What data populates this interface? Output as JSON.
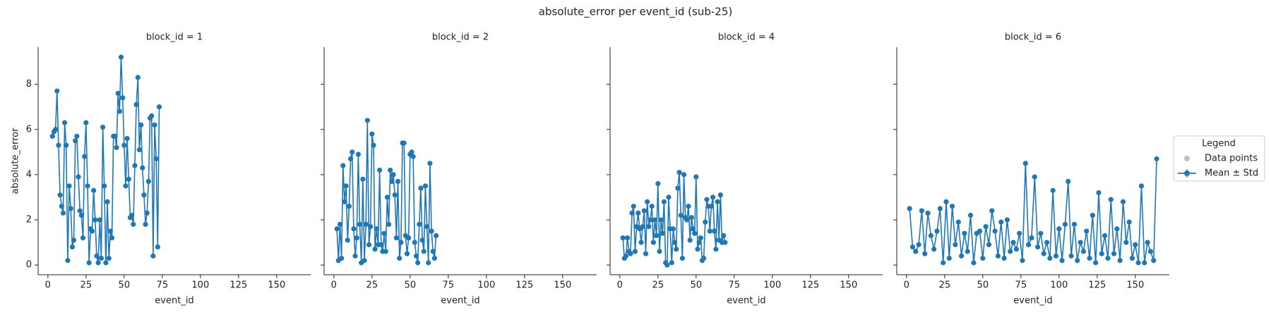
{
  "title": "absolute_error per event_id (sub-25)",
  "legend": {
    "title": "Legend",
    "entries": [
      {
        "name": "Data points",
        "color": "#bfbfbf"
      },
      {
        "name": "Mean ± Std",
        "color": "#1f77b4"
      }
    ]
  },
  "chart_data": [
    {
      "type": "line",
      "title": "block_id = 1",
      "xlabel": "event_id",
      "ylabel": "absolute_error",
      "color": "#1f77b4",
      "x": [
        3,
        4,
        5,
        6,
        7,
        8,
        9,
        10,
        11,
        12,
        13,
        14,
        15,
        16,
        17,
        18,
        19,
        20,
        21,
        22,
        23,
        24,
        25,
        26,
        27,
        28,
        29,
        30,
        31,
        32,
        33,
        34,
        35,
        36,
        37,
        38,
        39,
        40,
        41,
        42,
        43,
        44,
        45,
        46,
        47,
        48,
        49,
        50,
        51,
        52,
        53,
        54,
        55,
        56,
        57,
        58,
        59,
        60,
        61,
        62,
        63,
        64,
        65,
        66,
        67,
        68,
        69,
        70,
        71,
        72,
        73
      ],
      "values": [
        5.7,
        5.9,
        6.0,
        7.7,
        5.3,
        3.1,
        2.6,
        2.3,
        6.3,
        5.3,
        0.2,
        3.5,
        2.5,
        0.8,
        1.1,
        5.5,
        5.7,
        3.9,
        2.4,
        2.2,
        1.2,
        4.8,
        6.3,
        3.5,
        0.1,
        1.6,
        1.5,
        3.3,
        2.0,
        0.4,
        0.1,
        2.0,
        0.3,
        6.1,
        3.5,
        0.1,
        2.8,
        0.3,
        1.5,
        1.2,
        5.7,
        5.7,
        5.2,
        7.6,
        6.8,
        9.2,
        7.4,
        5.3,
        3.5,
        5.6,
        3.8,
        2.1,
        2.2,
        1.8,
        4.4,
        7.1,
        8.3,
        5.1,
        6.2,
        4.3,
        3.1,
        1.8,
        2.3,
        3.7,
        6.5,
        6.6,
        0.4,
        6.2,
        4.7,
        0.8,
        7.0
      ],
      "xlim": [
        -6.4,
        172.3
      ],
      "ylim": [
        -0.43,
        9.64
      ],
      "xticks": [
        0,
        25,
        50,
        75,
        100,
        125,
        150
      ],
      "yticks": [
        0,
        2,
        4,
        6,
        8
      ]
    },
    {
      "type": "line",
      "title": "block_id = 2",
      "xlabel": "event_id",
      "color": "#1f77b4",
      "x": [
        2,
        3,
        4,
        5,
        6,
        7,
        8,
        9,
        10,
        11,
        12,
        13,
        14,
        15,
        16,
        17,
        18,
        19,
        20,
        21,
        22,
        23,
        24,
        25,
        26,
        27,
        28,
        29,
        30,
        31,
        32,
        33,
        34,
        35,
        36,
        37,
        38,
        39,
        40,
        41,
        42,
        43,
        44,
        45,
        46,
        47,
        48,
        49,
        50,
        51,
        52,
        53,
        54,
        55,
        56,
        57,
        58,
        59,
        60,
        61,
        62,
        63,
        64,
        65,
        66,
        67
      ],
      "values": [
        1.6,
        0.2,
        1.8,
        0.3,
        4.4,
        2.8,
        3.5,
        1.1,
        2.6,
        4.7,
        5.0,
        1.6,
        0.4,
        1.2,
        4.9,
        1.8,
        0.1,
        3.8,
        0.2,
        1.8,
        6.4,
        0.9,
        1.7,
        5.8,
        5.3,
        0.7,
        1.6,
        0.9,
        4.2,
        0.9,
        0.6,
        1.4,
        0.6,
        3.0,
        1.8,
        4.2,
        3.7,
        4.0,
        3.1,
        1.2,
        3.7,
        0.3,
        1.0,
        5.4,
        5.4,
        1.3,
        0.5,
        1.2,
        4.9,
        5.0,
        4.8,
        1.0,
        0.4,
        0.1,
        1.8,
        3.4,
        1.1,
        0.6,
        3.5,
        1.7,
        0.1,
        4.5,
        1.5,
        0.6,
        0.3,
        1.3
      ],
      "xlim": [
        -6.4,
        172.3
      ],
      "ylim": [
        -0.43,
        9.64
      ],
      "xticks": [
        0,
        25,
        50,
        75,
        100,
        125,
        150
      ],
      "yticks": [
        0,
        2,
        4,
        6,
        8
      ]
    },
    {
      "type": "line",
      "title": "block_id = 4",
      "xlabel": "event_id",
      "color": "#1f77b4",
      "x": [
        2,
        3,
        4,
        5,
        6,
        7,
        8,
        9,
        10,
        11,
        12,
        13,
        14,
        15,
        16,
        17,
        18,
        19,
        20,
        21,
        22,
        23,
        24,
        25,
        26,
        27,
        28,
        29,
        30,
        31,
        32,
        33,
        34,
        35,
        36,
        37,
        38,
        39,
        40,
        41,
        42,
        43,
        44,
        45,
        46,
        47,
        48,
        49,
        50,
        51,
        52,
        53,
        54,
        55,
        56,
        57,
        58,
        59,
        60,
        61,
        62,
        63,
        64,
        65,
        66,
        67,
        68,
        69
      ],
      "values": [
        1.2,
        0.3,
        0.4,
        1.2,
        0.6,
        0.5,
        2.3,
        2.6,
        0.6,
        1.7,
        2.3,
        1.6,
        1.0,
        1.7,
        2.4,
        0.5,
        2.8,
        1.7,
        2.0,
        2.6,
        1.0,
        2.0,
        1.3,
        3.6,
        0.6,
        2.0,
        1.4,
        2.8,
        0.1,
        0.0,
        3.0,
        1.6,
        0.1,
        1.6,
        1.0,
        0.7,
        3.4,
        4.1,
        2.2,
        0.3,
        4.0,
        2.1,
        2.0,
        2.6,
        1.1,
        2.1,
        1.6,
        1.4,
        3.9,
        0.7,
        1.0,
        1.2,
        0.2,
        0.3,
        1.9,
        2.9,
        2.6,
        1.5,
        2.6,
        3.0,
        1.5,
        0.7,
        2.8,
        1.1,
        3.1,
        1.0,
        1.3,
        1.0
      ],
      "xlim": [
        -6.4,
        172.3
      ],
      "ylim": [
        -0.43,
        9.64
      ],
      "xticks": [
        0,
        25,
        50,
        75,
        100,
        125,
        150
      ],
      "yticks": [
        0,
        2,
        4,
        6,
        8
      ]
    },
    {
      "type": "line",
      "title": "block_id = 6",
      "xlabel": "event_id",
      "color": "#1f77b4",
      "x": [
        2,
        4,
        6,
        8,
        10,
        12,
        14,
        16,
        18,
        20,
        22,
        24,
        26,
        28,
        30,
        32,
        34,
        36,
        38,
        40,
        42,
        44,
        46,
        48,
        50,
        52,
        54,
        56,
        58,
        60,
        62,
        64,
        66,
        68,
        70,
        72,
        74,
        76,
        78,
        80,
        82,
        84,
        86,
        88,
        90,
        92,
        94,
        96,
        98,
        100,
        102,
        104,
        106,
        108,
        110,
        112,
        114,
        116,
        118,
        120,
        122,
        124,
        126,
        128,
        130,
        132,
        134,
        136,
        138,
        140,
        142,
        144,
        146,
        148,
        150,
        152,
        154,
        156,
        158,
        160,
        162,
        164
      ],
      "values": [
        2.5,
        0.8,
        0.6,
        0.9,
        2.4,
        0.5,
        2.3,
        1.3,
        0.7,
        1.5,
        2.5,
        0.1,
        2.8,
        0.3,
        2.6,
        0.9,
        1.9,
        0.4,
        1.4,
        0.6,
        2.2,
        0.1,
        1.4,
        1.5,
        0.3,
        1.7,
        0.9,
        2.4,
        1.5,
        0.4,
        1.9,
        0.3,
        2.0,
        0.6,
        1.0,
        0.7,
        1.4,
        0.2,
        4.5,
        0.9,
        1.2,
        3.9,
        0.8,
        1.4,
        0.5,
        1.0,
        0.3,
        3.3,
        0.4,
        1.6,
        0.2,
        1.8,
        3.7,
        0.4,
        1.8,
        0.2,
        1.0,
        0.6,
        1.5,
        0.3,
        2.2,
        0.1,
        3.2,
        0.5,
        1.3,
        0.3,
        2.9,
        0.5,
        1.6,
        0.2,
        2.8,
        1.0,
        1.9,
        0.3,
        0.9,
        0.1,
        3.5,
        0.1,
        1.0,
        0.6,
        0.2,
        4.7
      ],
      "xlim": [
        -6.4,
        172.3
      ],
      "ylim": [
        -0.43,
        9.64
      ],
      "xticks": [
        0,
        25,
        50,
        75,
        100,
        125,
        150
      ],
      "yticks": [
        0,
        2,
        4,
        6,
        8
      ]
    }
  ]
}
